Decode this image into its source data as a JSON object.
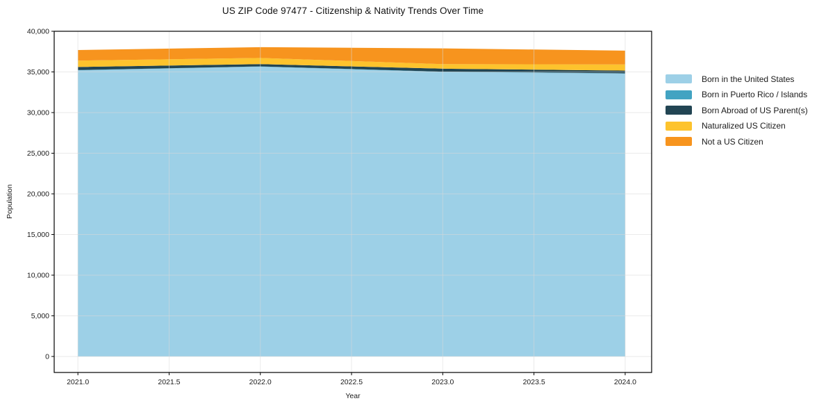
{
  "chart_data": {
    "type": "area",
    "stacked": true,
    "title": "US ZIP Code 97477 - Citizenship & Nativity Trends Over Time",
    "xlabel": "Year",
    "ylabel": "Population",
    "x": [
      2021,
      2022,
      2023,
      2024
    ],
    "series": [
      {
        "name": "Born in the United States",
        "color": "#9dd0e7",
        "values": [
          35200,
          35650,
          35000,
          34800
        ]
      },
      {
        "name": "Born in Puerto Rico / Islands",
        "color": "#42a3c2",
        "values": [
          30,
          30,
          30,
          30
        ]
      },
      {
        "name": "Born Abroad of US Parent(s)",
        "color": "#224553",
        "values": [
          380,
          280,
          370,
          330
        ]
      },
      {
        "name": "Naturalized US Citizen",
        "color": "#fdc32d",
        "values": [
          780,
          760,
          560,
          760
        ]
      },
      {
        "name": "Not a US Citizen",
        "color": "#f7941e",
        "values": [
          1300,
          1330,
          1930,
          1700
        ]
      }
    ],
    "totals": [
      37690,
      38050,
      37890,
      37620
    ],
    "xlim": [
      2020.87,
      2024.145
    ],
    "ylim": [
      -1970,
      40000
    ],
    "xticks": {
      "values": [
        2021.0,
        2021.5,
        2022.0,
        2022.5,
        2023.0,
        2023.5,
        2024.0
      ],
      "labels": [
        "2021.0",
        "2021.5",
        "2022.0",
        "2022.5",
        "2023.0",
        "2023.5",
        "2024.0"
      ]
    },
    "yticks": {
      "values": [
        0,
        5000,
        10000,
        15000,
        20000,
        25000,
        30000,
        35000,
        40000
      ],
      "labels": [
        "0",
        "5,000",
        "10,000",
        "15,000",
        "20,000",
        "25,000",
        "30,000",
        "35,000",
        "40,000"
      ]
    },
    "grid": true,
    "legend_position": "right of plot, upper area"
  }
}
